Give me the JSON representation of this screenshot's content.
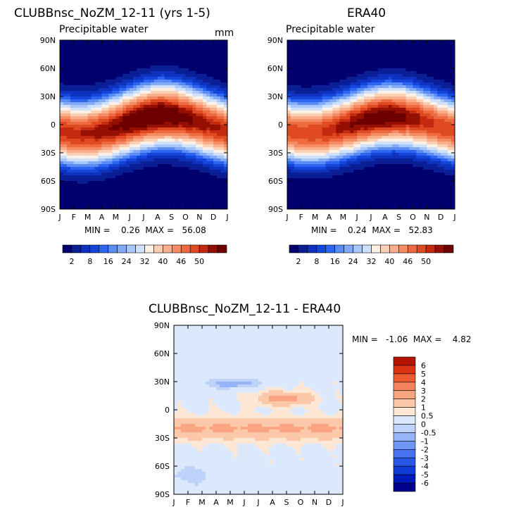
{
  "chart_data": [
    {
      "type": "heatmap",
      "title": "CLUBBnsc_NoZM_12-11 (yrs 1-5)",
      "subtitle": "Precipitable water",
      "units": "mm",
      "x_ticks": [
        "J",
        "F",
        "M",
        "A",
        "M",
        "J",
        "J",
        "A",
        "S",
        "O",
        "N",
        "D",
        "J"
      ],
      "y_ticks": [
        "90N",
        "60N",
        "30N",
        "0",
        "30S",
        "60S",
        "90S"
      ],
      "stats_text": "MIN =    0.26  MAX =   56.08",
      "min": 0.26,
      "max": 56.08,
      "colorbar_labels": [
        "2",
        "8",
        "16",
        "24",
        "32",
        "40",
        "46",
        "50"
      ],
      "peak_month": 7.5,
      "peak_lat": 10,
      "equator_values_by_month": [
        45,
        45,
        46,
        48,
        50,
        53,
        55,
        56,
        54,
        51,
        48,
        46,
        45
      ]
    },
    {
      "type": "heatmap",
      "title": "ERA40",
      "subtitle": "Precipitable water",
      "x_ticks": [
        "J",
        "F",
        "M",
        "A",
        "M",
        "J",
        "J",
        "A",
        "S",
        "O",
        "N",
        "D",
        "J"
      ],
      "y_ticks": [
        "90N",
        "60N",
        "30N",
        "0",
        "30S",
        "60S",
        "90S"
      ],
      "stats_text": "MIN =    0.24  MAX =   52.83",
      "min": 0.24,
      "max": 52.83,
      "colorbar_labels": [
        "2",
        "8",
        "16",
        "24",
        "32",
        "40",
        "46",
        "50"
      ],
      "peak_month": 7.5,
      "peak_lat": 8,
      "equator_values_by_month": [
        42,
        42,
        43,
        45,
        47,
        50,
        52,
        53,
        51,
        48,
        45,
        43,
        42
      ]
    },
    {
      "type": "heatmap",
      "title": "CLUBBnsc_NoZM_12-11 - ERA40",
      "x_ticks": [
        "J",
        "F",
        "M",
        "A",
        "M",
        "J",
        "J",
        "A",
        "S",
        "O",
        "N",
        "D",
        "J"
      ],
      "y_ticks": [
        "90N",
        "60N",
        "30N",
        "0",
        "30S",
        "60S",
        "90S"
      ],
      "stats_text": "MIN =   -1.06  MAX =    4.82",
      "min": -1.06,
      "max": 4.82,
      "colorbar_labels": [
        "6",
        "5",
        "4",
        "3",
        "2",
        "1",
        "0.5",
        "0",
        "-0.5",
        "-1",
        "-2",
        "-3",
        "-4",
        "-5",
        "-6"
      ]
    }
  ],
  "palettes": {
    "abs": [
      "#00006e",
      "#0a1e96",
      "#0f32be",
      "#1446dc",
      "#2d64f0",
      "#5a8cf5",
      "#82aaf8",
      "#a8c8fb",
      "#cfe1fc",
      "#fdf0e4",
      "#fcd0b4",
      "#faaf8c",
      "#f58c64",
      "#ee6a41",
      "#e04a23",
      "#c42a10",
      "#961002",
      "#6e0000"
    ],
    "diff": [
      "#00008c",
      "#0019b9",
      "#0f3cd7",
      "#2856e6",
      "#4672f0",
      "#6e96f5",
      "#96b4f7",
      "#bed2fa",
      "#dce8fc",
      "#fde6d3",
      "#fcc8aa",
      "#f9a582",
      "#f5825c",
      "#ee5a32",
      "#dc3214",
      "#b41400",
      "#8c0000"
    ]
  }
}
